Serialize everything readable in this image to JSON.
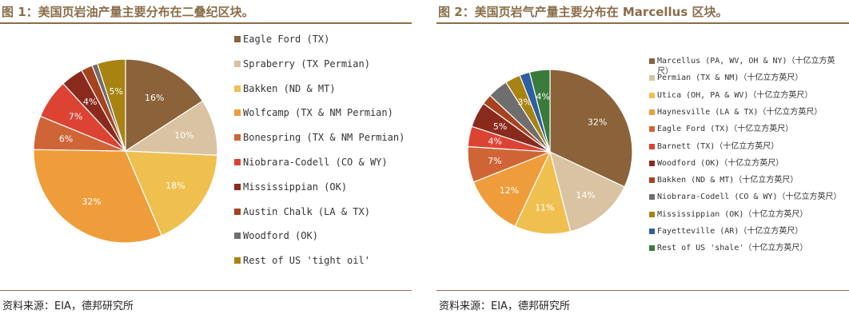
{
  "figures": [
    {
      "title": "图 1：美国页岩油产量主要分布在二叠纪区块。",
      "source": "资料来源：EIA，德邦研究所"
    },
    {
      "title": "图 2：美国页岩气产量主要分布在 Marcellus 区块。",
      "source": "资料来源：EIA，德邦研究所"
    }
  ],
  "chart_data": [
    {
      "type": "pie",
      "slices": [
        {
          "label": "Eagle Ford (TX)",
          "value": 16,
          "display": "16%",
          "color": "#8b6239"
        },
        {
          "label": "Spraberry (TX Permian)",
          "value": 10,
          "display": "10%",
          "color": "#d9c3a2"
        },
        {
          "label": "Bakken (ND & MT)",
          "value": 18,
          "display": "18%",
          "color": "#efc050"
        },
        {
          "label": "Wolfcamp (TX & NM Permian)",
          "value": 32,
          "display": "32%",
          "color": "#ee9d3a"
        },
        {
          "label": "Bonespring (TX & NM Permian)",
          "value": 6,
          "display": "6%",
          "color": "#cf6536"
        },
        {
          "label": "Niobrara-Codell (CO & WY)",
          "value": 7,
          "display": "7%",
          "color": "#dc4333"
        },
        {
          "label": "Mississippian (OK)",
          "value": 4,
          "display": "4%",
          "color": "#8a2a1d"
        },
        {
          "label": "Austin Chalk (LA & TX)",
          "value": 2,
          "display": "",
          "color": "#a5431e"
        },
        {
          "label": "Woodford (OK)",
          "value": 1,
          "display": "",
          "color": "#6e6e6e"
        },
        {
          "label": "Rest of US 'tight oil'",
          "value": 5,
          "display": "5%",
          "color": "#a88312"
        }
      ],
      "legend_position": "right"
    },
    {
      "type": "pie",
      "slices": [
        {
          "label": "Marcellus (PA, WV, OH & NY)（十亿立方英尺）",
          "value": 32,
          "display": "32%",
          "color": "#8b6239"
        },
        {
          "label": "Permian (TX & NM)（十亿立方英尺）",
          "value": 14,
          "display": "14%",
          "color": "#d9c3a2"
        },
        {
          "label": "Utica (OH, PA & WV)（十亿立方英尺）",
          "value": 11,
          "display": "11%",
          "color": "#efc050"
        },
        {
          "label": "Haynesville (LA & TX)（十亿立方英尺）",
          "value": 12,
          "display": "12%",
          "color": "#ee9d3a"
        },
        {
          "label": "Eagle Ford (TX)（十亿立方英尺）",
          "value": 7,
          "display": "7%",
          "color": "#cf6536"
        },
        {
          "label": "Barnett (TX)（十亿立方英尺）",
          "value": 4,
          "display": "4%",
          "color": "#dc4333"
        },
        {
          "label": "Woodford (OK)（十亿立方英尺）",
          "value": 5,
          "display": "5%",
          "color": "#8a2a1d"
        },
        {
          "label": "Bakken (ND & MT)（十亿立方英尺）",
          "value": 2,
          "display": "",
          "color": "#a5431e"
        },
        {
          "label": "Niobrara-Codell (CO & WY)（十亿立方英尺）",
          "value": 4,
          "display": "",
          "color": "#6e6e6e"
        },
        {
          "label": "Mississippian (OK)（十亿立方英尺）",
          "value": 3,
          "display": "3%",
          "color": "#a88312"
        },
        {
          "label": "Fayetteville (AR)（十亿立方英尺）",
          "value": 2,
          "display": "",
          "color": "#2e5fa0"
        },
        {
          "label": "Rest of US 'shale'（十亿立方英尺）",
          "value": 4,
          "display": "4%",
          "color": "#3a7a3a"
        }
      ],
      "legend_position": "right"
    }
  ]
}
